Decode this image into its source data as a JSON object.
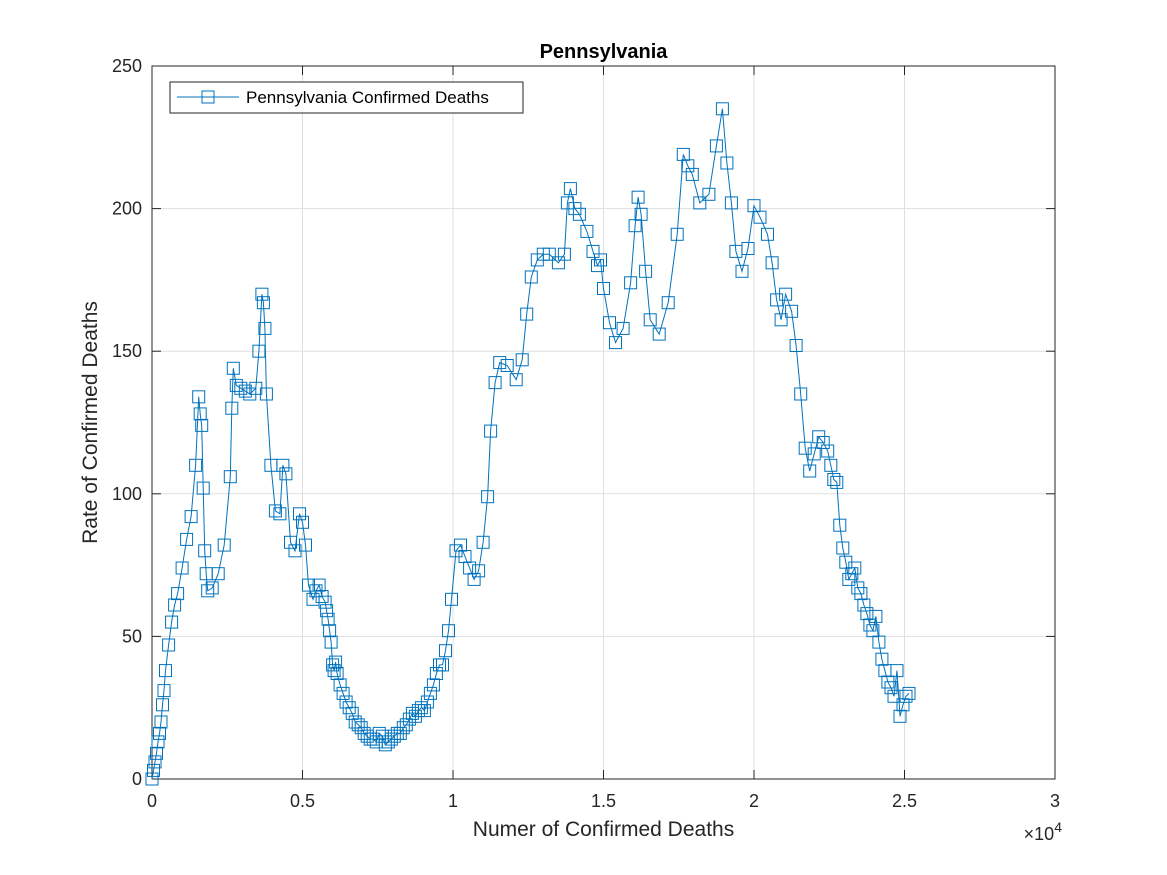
{
  "chart_data": {
    "type": "line",
    "title": "Pennsylvania",
    "xlabel": "Numer of Confirmed Deaths",
    "ylabel": "Rate of Confirmed Deaths",
    "x_exponent_label": "×10",
    "x_exponent_power": "4",
    "x_scale": 10000,
    "xlim": [
      0,
      30000
    ],
    "ylim": [
      0,
      250
    ],
    "xticks": [
      0,
      5000,
      10000,
      15000,
      20000,
      25000,
      30000
    ],
    "xtick_labels": [
      "0",
      "0.5",
      "1",
      "1.5",
      "2",
      "2.5",
      "3"
    ],
    "yticks": [
      0,
      50,
      100,
      150,
      200,
      250
    ],
    "ytick_labels": [
      "0",
      "50",
      "100",
      "150",
      "200",
      "250"
    ],
    "grid": true,
    "legend_position": "top-left",
    "marker": "square",
    "series": [
      {
        "name": "Pennsylvania Confirmed Deaths",
        "color": "#0072BD",
        "x": [
          0,
          50,
          100,
          150,
          200,
          250,
          300,
          350,
          400,
          450,
          550,
          650,
          750,
          850,
          1000,
          1150,
          1300,
          1450,
          1550,
          1600,
          1650,
          1700,
          1750,
          1800,
          1850,
          2000,
          2200,
          2400,
          2600,
          2650,
          2700,
          2800,
          2950,
          3100,
          3250,
          3450,
          3550,
          3650,
          3700,
          3750,
          3800,
          3950,
          4100,
          4250,
          4350,
          4450,
          4600,
          4750,
          4900,
          5000,
          5100,
          5200,
          5350,
          5450,
          5550,
          5650,
          5750,
          5800,
          5850,
          5900,
          5950,
          6000,
          6050,
          6100,
          6150,
          6250,
          6350,
          6450,
          6550,
          6650,
          6750,
          6850,
          6950,
          7050,
          7150,
          7250,
          7350,
          7450,
          7550,
          7650,
          7750,
          7850,
          7950,
          8050,
          8150,
          8250,
          8350,
          8450,
          8550,
          8650,
          8750,
          8850,
          8950,
          9050,
          9150,
          9250,
          9350,
          9450,
          9550,
          9650,
          9750,
          9850,
          9950,
          10100,
          10250,
          10400,
          10550,
          10700,
          10850,
          11000,
          11150,
          11250,
          11400,
          11550,
          11800,
          12100,
          12300,
          12450,
          12600,
          12800,
          13000,
          13200,
          13500,
          13700,
          13800,
          13900,
          14050,
          14200,
          14450,
          14650,
          14800,
          14900,
          15000,
          15200,
          15400,
          15650,
          15900,
          16050,
          16150,
          16250,
          16400,
          16550,
          16850,
          17150,
          17450,
          17650,
          17800,
          17950,
          18200,
          18500,
          18750,
          18950,
          19100,
          19250,
          19400,
          19600,
          19800,
          20000,
          20200,
          20450,
          20600,
          20750,
          20900,
          21050,
          21250,
          21400,
          21550,
          21700,
          21850,
          22000,
          22150,
          22300,
          22450,
          22550,
          22650,
          22750,
          22850,
          22950,
          23050,
          23150,
          23250,
          23350,
          23450,
          23550,
          23650,
          23750,
          23850,
          23950,
          24050,
          24150,
          24250,
          24350,
          24450,
          24550,
          24650,
          24750,
          24850,
          24950,
          25050,
          25150
        ],
        "y": [
          0,
          3,
          6,
          9,
          13,
          16,
          20,
          26,
          31,
          38,
          47,
          55,
          61,
          65,
          74,
          84,
          92,
          110,
          134,
          128,
          124,
          102,
          80,
          72,
          66,
          67,
          72,
          82,
          106,
          130,
          144,
          138,
          137,
          136,
          135,
          137,
          150,
          170,
          167,
          158,
          135,
          110,
          94,
          93,
          110,
          107,
          83,
          80,
          93,
          90,
          82,
          68,
          63,
          66,
          68,
          64,
          62,
          59,
          56,
          52,
          48,
          40,
          38,
          41,
          37,
          33,
          30,
          27,
          25,
          23,
          20,
          19,
          18,
          16,
          15,
          14,
          14,
          13,
          16,
          15,
          12,
          13,
          14,
          15,
          16,
          16,
          18,
          19,
          21,
          23,
          22,
          24,
          25,
          24,
          27,
          30,
          33,
          37,
          40,
          40,
          45,
          52,
          63,
          80,
          82,
          78,
          74,
          70,
          73,
          83,
          99,
          122,
          139,
          146,
          145,
          140,
          147,
          163,
          176,
          182,
          184,
          184,
          181,
          184,
          202,
          207,
          200,
          198,
          192,
          185,
          180,
          182,
          172,
          160,
          153,
          158,
          174,
          194,
          204,
          198,
          178,
          161,
          156,
          167,
          191,
          219,
          215,
          212,
          202,
          205,
          222,
          235,
          216,
          202,
          185,
          178,
          186,
          201,
          197,
          191,
          181,
          168,
          161,
          170,
          164,
          152,
          135,
          116,
          108,
          114,
          120,
          118,
          115,
          110,
          105,
          104,
          89,
          81,
          76,
          70,
          72,
          74,
          67,
          65,
          61,
          58,
          54,
          52,
          57,
          48,
          42,
          38,
          34,
          32,
          29,
          38,
          22,
          26,
          29,
          30
        ]
      }
    ]
  }
}
